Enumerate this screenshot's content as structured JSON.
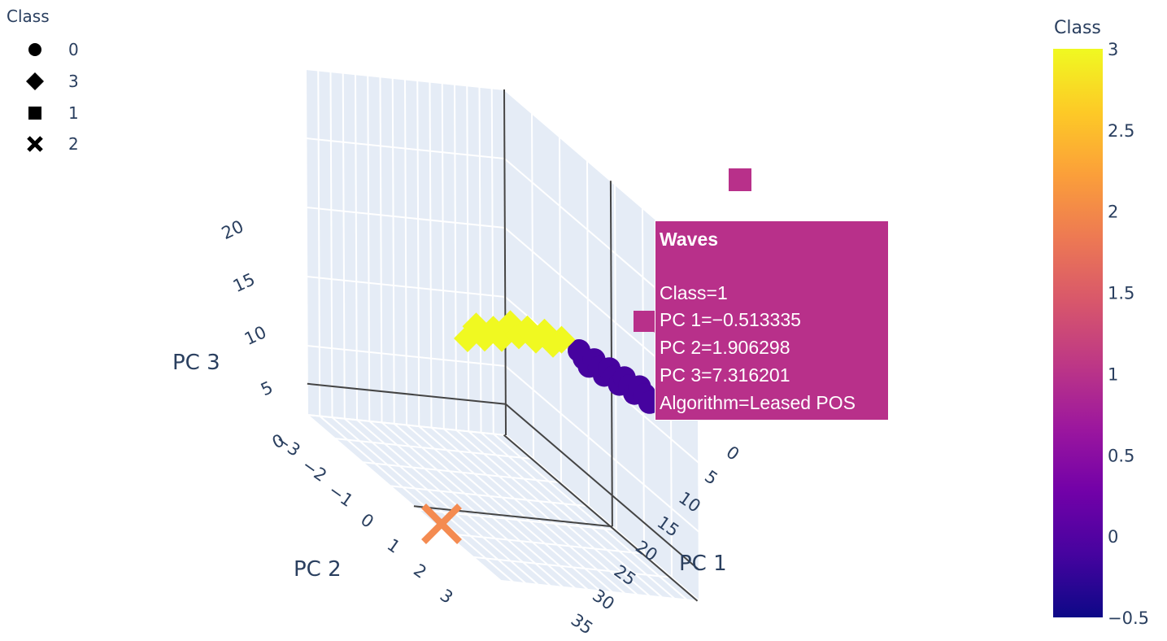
{
  "legend": {
    "title": "Class",
    "items": [
      {
        "label": "0",
        "symbol": "circle"
      },
      {
        "label": "3",
        "symbol": "diamond"
      },
      {
        "label": "1",
        "symbol": "square"
      },
      {
        "label": "2",
        "symbol": "x"
      }
    ]
  },
  "colorbar": {
    "title": "Class",
    "range": [
      -0.5,
      3
    ],
    "ticks": [
      "3",
      "2.5",
      "2",
      "1.5",
      "1",
      "0.5",
      "0",
      "−0.5"
    ],
    "colors": [
      "#0d0887",
      "#46039f",
      "#7201a8",
      "#9c179e",
      "#bd3786",
      "#d8576b",
      "#ed7953",
      "#fb9f3a",
      "#fdca26",
      "#f0f921"
    ]
  },
  "tooltip": {
    "title": "Waves",
    "lines": [
      "Class=1",
      "PC 1=−0.513335",
      "PC 2=1.906298",
      "PC 3=7.316201",
      "Algorithm=Leased POS"
    ],
    "color": "#b8308a"
  },
  "chart_data": {
    "type": "scatter",
    "title": "",
    "axes": {
      "x": {
        "label": "PC 1",
        "ticks": [
          "0",
          "5",
          "10",
          "15",
          "20",
          "25",
          "30",
          "35"
        ]
      },
      "y": {
        "label": "PC 2",
        "ticks": [
          "−3",
          "−2",
          "−1",
          "0",
          "1",
          "2",
          "3"
        ]
      },
      "z": {
        "label": "PC 3",
        "ticks": [
          "0",
          "5",
          "10",
          "15",
          "20"
        ]
      }
    },
    "color_by": "Class",
    "series": [
      {
        "name": "0",
        "symbol": "circle",
        "color": "#46039f",
        "points": [
          [
            -0.4,
            -0.3,
            -0.2
          ],
          [
            -0.5,
            -0.1,
            -0.3
          ],
          [
            -0.3,
            0.0,
            -0.1
          ],
          [
            -0.6,
            0.2,
            -0.4
          ],
          [
            -0.2,
            0.3,
            0.0
          ],
          [
            -0.4,
            0.5,
            -0.2
          ],
          [
            -0.5,
            0.7,
            -0.3
          ],
          [
            -0.3,
            0.9,
            -0.1
          ],
          [
            -0.4,
            1.1,
            -0.2
          ],
          [
            -0.2,
            1.2,
            0.0
          ],
          [
            -0.5,
            1.4,
            -0.3
          ],
          [
            -0.3,
            1.5,
            -0.1
          ],
          [
            -0.4,
            1.6,
            -0.2
          ],
          [
            -0.2,
            1.8,
            0.1
          ],
          [
            -0.3,
            1.9,
            0.0
          ]
        ]
      },
      {
        "name": "3",
        "symbol": "diamond",
        "color": "#f0f921",
        "points": [
          [
            -0.5,
            -2.6,
            -0.5
          ],
          [
            -0.3,
            -2.5,
            0.8
          ],
          [
            -0.4,
            -2.3,
            -0.3
          ],
          [
            -0.2,
            -2.1,
            0.6
          ],
          [
            -0.5,
            -1.9,
            -0.2
          ],
          [
            -0.3,
            -1.7,
            1.3
          ],
          [
            -0.4,
            -1.5,
            0.2
          ],
          [
            -0.2,
            -1.3,
            0.9
          ],
          [
            -0.3,
            -1.1,
            -0.1
          ],
          [
            -0.5,
            -0.9,
            0.7
          ],
          [
            -0.2,
            -0.7,
            -0.4
          ],
          [
            -0.4,
            -0.5,
            0.1
          ]
        ]
      },
      {
        "name": "1",
        "symbol": "square",
        "color": "#b8308a",
        "points": [
          [
            -0.513335,
            1.906298,
            7.316201
          ],
          [
            -1.0,
            -1.0,
            23.0
          ]
        ]
      },
      {
        "name": "2",
        "symbol": "x",
        "color": "#f48b51",
        "points": [
          [
            35.0,
            2.0,
            -1.0
          ]
        ]
      }
    ]
  }
}
